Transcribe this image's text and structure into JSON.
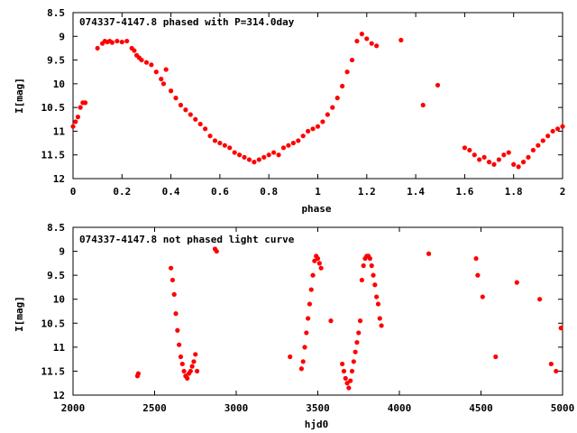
{
  "chart_data": [
    {
      "type": "scatter",
      "title": "074337-4147.8 phased with P=314.0day",
      "xlabel": "phase",
      "ylabel": "I[mag]",
      "xlim": [
        0,
        2
      ],
      "ylim": [
        8.5,
        12
      ],
      "y_inverted": true,
      "x_ticks": [
        "0",
        "0.2",
        "0.4",
        "0.6",
        "0.8",
        "1",
        "1.2",
        "1.4",
        "1.6",
        "1.8",
        "2"
      ],
      "y_ticks": [
        "8.5",
        "9",
        "9.5",
        "10",
        "10.5",
        "11",
        "11.5",
        "12"
      ],
      "marker_color": "#ff0000",
      "series": [
        {
          "x": [
            0.0,
            0.01,
            0.02,
            0.03,
            0.04,
            0.05,
            0.1,
            0.12,
            0.13,
            0.14,
            0.15,
            0.16,
            0.18,
            0.2,
            0.22,
            0.24,
            0.25,
            0.26,
            0.27,
            0.28,
            0.3,
            0.32,
            0.34,
            0.36,
            0.37,
            0.38,
            0.4,
            0.42,
            0.44,
            0.46,
            0.48,
            0.5,
            0.52,
            0.54,
            0.56,
            0.58,
            0.6,
            0.62,
            0.64,
            0.66,
            0.68,
            0.7,
            0.72,
            0.74,
            0.76,
            0.78,
            0.8,
            0.82,
            0.84,
            0.86,
            0.88,
            0.9,
            0.92,
            0.94,
            0.96,
            0.98,
            1.0,
            1.02,
            1.04,
            1.06,
            1.08,
            1.1,
            1.12,
            1.14,
            1.16,
            1.18,
            1.2,
            1.22,
            1.24,
            1.34,
            1.43,
            1.49,
            1.6,
            1.62,
            1.64,
            1.66,
            1.68,
            1.7,
            1.72,
            1.74,
            1.76,
            1.78,
            1.8,
            1.82,
            1.84,
            1.86,
            1.88,
            1.9,
            1.92,
            1.94,
            1.96,
            1.98,
            2.0
          ],
          "y": [
            10.9,
            10.8,
            10.7,
            10.5,
            10.4,
            10.4,
            9.25,
            9.15,
            9.1,
            9.12,
            9.1,
            9.13,
            9.1,
            9.12,
            9.1,
            9.25,
            9.3,
            9.4,
            9.45,
            9.5,
            9.55,
            9.6,
            9.75,
            9.9,
            10.0,
            9.7,
            10.15,
            10.3,
            10.45,
            10.55,
            10.65,
            10.75,
            10.85,
            10.95,
            11.1,
            11.2,
            11.25,
            11.3,
            11.35,
            11.45,
            11.5,
            11.55,
            11.6,
            11.65,
            11.6,
            11.55,
            11.5,
            11.45,
            11.5,
            11.35,
            11.3,
            11.25,
            11.2,
            11.1,
            11.0,
            10.95,
            10.9,
            10.8,
            10.65,
            10.5,
            10.3,
            10.05,
            9.75,
            9.5,
            9.1,
            8.95,
            9.05,
            9.15,
            9.2,
            9.08,
            10.45,
            10.03,
            11.35,
            11.4,
            11.5,
            11.6,
            11.55,
            11.65,
            11.7,
            11.6,
            11.5,
            11.45,
            11.7,
            11.75,
            11.65,
            11.55,
            11.4,
            11.3,
            11.2,
            11.1,
            11.0,
            10.95,
            10.9
          ]
        }
      ]
    },
    {
      "type": "scatter",
      "title": "074337-4147.8 not phased light curve",
      "xlabel": "hjd0",
      "ylabel": "I[mag]",
      "xlim": [
        2000,
        5000
      ],
      "ylim": [
        8.5,
        12
      ],
      "y_inverted": true,
      "x_ticks": [
        "2000",
        "2500",
        "3000",
        "3500",
        "4000",
        "4500",
        "5000"
      ],
      "y_ticks": [
        "8.5",
        "9",
        "9.5",
        "10",
        "10.5",
        "11",
        "11.5",
        "12"
      ],
      "marker_color": "#ff0000",
      "series": [
        {
          "x": [
            2395,
            2400,
            2600,
            2610,
            2620,
            2630,
            2640,
            2650,
            2660,
            2670,
            2680,
            2690,
            2700,
            2710,
            2720,
            2730,
            2740,
            2750,
            2760,
            2870,
            2880,
            3330,
            3400,
            3410,
            3420,
            3430,
            3440,
            3450,
            3460,
            3470,
            3480,
            3490,
            3500,
            3510,
            3520,
            3580,
            3650,
            3660,
            3670,
            3680,
            3690,
            3700,
            3710,
            3720,
            3730,
            3740,
            3750,
            3760,
            3770,
            3780,
            3790,
            3800,
            3810,
            3820,
            3830,
            3840,
            3850,
            3860,
            3870,
            3880,
            3890,
            4180,
            4470,
            4480,
            4510,
            4590,
            4720,
            4860,
            4930,
            4960,
            4990
          ],
          "y": [
            11.6,
            11.55,
            9.35,
            9.6,
            9.9,
            10.3,
            10.65,
            10.95,
            11.2,
            11.35,
            11.5,
            11.6,
            11.65,
            11.55,
            11.5,
            11.4,
            11.3,
            11.15,
            11.5,
            8.95,
            9.0,
            11.2,
            11.45,
            11.3,
            11.0,
            10.7,
            10.4,
            10.1,
            9.8,
            9.5,
            9.2,
            9.1,
            9.15,
            9.25,
            9.35,
            10.45,
            11.35,
            11.5,
            11.65,
            11.75,
            11.85,
            11.7,
            11.5,
            11.3,
            11.1,
            10.9,
            10.7,
            10.45,
            9.6,
            9.3,
            9.15,
            9.1,
            9.1,
            9.15,
            9.3,
            9.5,
            9.7,
            9.95,
            10.1,
            10.4,
            10.55,
            9.05,
            9.15,
            9.5,
            9.95,
            11.2,
            9.65,
            10.0,
            11.35,
            11.5,
            10.6
          ]
        }
      ]
    }
  ]
}
